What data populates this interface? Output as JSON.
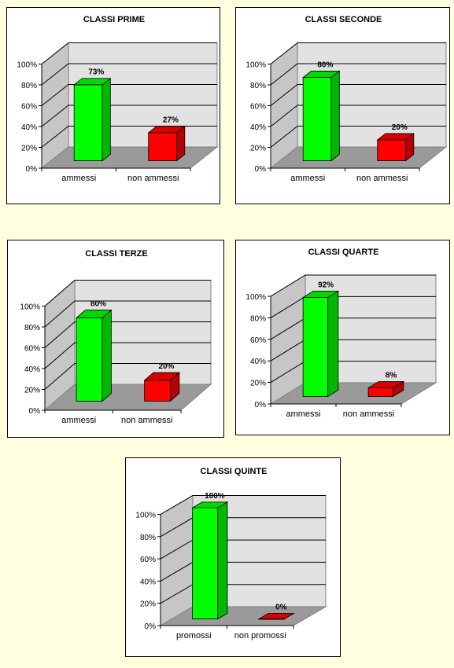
{
  "chart_data": [
    {
      "type": "bar",
      "title": "CLASSI PRIME",
      "categories": [
        "ammessi",
        "non ammessi"
      ],
      "values": [
        73,
        27
      ],
      "value_labels": [
        "73%",
        "27%"
      ],
      "ylim": [
        0,
        100
      ],
      "y_ticks": [
        "0%",
        "20%",
        "40%",
        "60%",
        "80%",
        "100%"
      ],
      "grid": true,
      "bar_colors": [
        "#00FF00",
        "#FF0000"
      ]
    },
    {
      "type": "bar",
      "title": "CLASSI SECONDE",
      "categories": [
        "ammessi",
        "non ammessi"
      ],
      "values": [
        80,
        20
      ],
      "value_labels": [
        "80%",
        "20%"
      ],
      "ylim": [
        0,
        100
      ],
      "y_ticks": [
        "0%",
        "20%",
        "40%",
        "60%",
        "80%",
        "100%"
      ],
      "grid": true,
      "bar_colors": [
        "#00FF00",
        "#FF0000"
      ]
    },
    {
      "type": "bar",
      "title": "CLASSI TERZE",
      "categories": [
        "ammessi",
        "non ammessi"
      ],
      "values": [
        80,
        20
      ],
      "value_labels": [
        "80%",
        "20%"
      ],
      "ylim": [
        0,
        100
      ],
      "y_ticks": [
        "0%",
        "20%",
        "40%",
        "60%",
        "80%",
        "100%"
      ],
      "grid": true,
      "bar_colors": [
        "#00FF00",
        "#FF0000"
      ]
    },
    {
      "type": "bar",
      "title": "CLASSI QUARTE",
      "categories": [
        "ammessi",
        "non ammessi"
      ],
      "values": [
        92,
        8
      ],
      "value_labels": [
        "92%",
        "8%"
      ],
      "ylim": [
        0,
        100
      ],
      "y_ticks": [
        "0%",
        "20%",
        "40%",
        "60%",
        "80%",
        "100%"
      ],
      "grid": true,
      "bar_colors": [
        "#00FF00",
        "#FF0000"
      ]
    },
    {
      "type": "bar",
      "title": "CLASSI QUINTE",
      "categories": [
        "promossi",
        "non promossi"
      ],
      "values": [
        100,
        0
      ],
      "value_labels": [
        "100%",
        "0%"
      ],
      "ylim": [
        0,
        100
      ],
      "y_ticks": [
        "0%",
        "20%",
        "40%",
        "60%",
        "80%",
        "100%"
      ],
      "grid": true,
      "bar_colors": [
        "#00FF00",
        "#FF0000"
      ]
    }
  ]
}
